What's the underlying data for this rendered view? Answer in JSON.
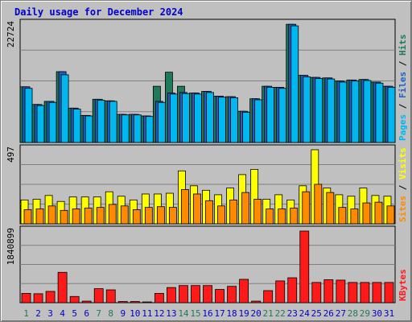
{
  "chart_data": {
    "type": "bar",
    "title": "Daily usage for December 2024",
    "categories": [
      "1",
      "2",
      "3",
      "4",
      "5",
      "6",
      "7",
      "8",
      "9",
      "10",
      "11",
      "12",
      "13",
      "14",
      "15",
      "16",
      "17",
      "18",
      "19",
      "20",
      "21",
      "22",
      "23",
      "24",
      "25",
      "26",
      "27",
      "28",
      "29",
      "30",
      "31"
    ],
    "weekend_days": [
      1,
      7,
      8,
      14,
      15,
      21,
      22,
      28,
      29
    ],
    "colors": {
      "hits": "#1f7a5c",
      "files": "#1f5fc6",
      "pages": "#00b7f0",
      "visits": "#ffff00",
      "sites": "#ff8a00",
      "kbytes": "#ff1a1a",
      "weekend": "#1f7a5c",
      "weekday": "#0000cc",
      "slash": "#000000"
    },
    "panels": [
      {
        "id": "top",
        "ymax_label": "22724",
        "ymax": 22724,
        "right_labels": [
          "Pages",
          "Files",
          "Hits"
        ],
        "series": [
          {
            "name": "Hits",
            "values": [
              10700,
              7300,
              7900,
              13600,
              6600,
              5200,
              8300,
              8000,
              5400,
              5400,
              5100,
              10800,
              13500,
              10800,
              9500,
              9800,
              8900,
              8800,
              6000,
              8400,
              10800,
              10600,
              22700,
              12900,
              12500,
              12400,
              11800,
              12000,
              12100,
              11600,
              10800
            ]
          },
          {
            "name": "Files",
            "values": [
              10700,
              7300,
              7900,
              13600,
              6600,
              5200,
              8300,
              8000,
              5400,
              5400,
              5100,
              7900,
              9500,
              9600,
              9500,
              9800,
              8900,
              8800,
              6000,
              8400,
              10800,
              10600,
              22700,
              12900,
              12500,
              12400,
              11800,
              12000,
              12100,
              11600,
              10800
            ]
          },
          {
            "name": "Pages",
            "values": [
              10400,
              7100,
              7700,
              13000,
              6400,
              5100,
              8100,
              7900,
              5300,
              5300,
              5000,
              7700,
              9300,
              9400,
              9300,
              9600,
              8700,
              8600,
              5800,
              8200,
              10600,
              10400,
              22400,
              12600,
              12300,
              12200,
              11600,
              11800,
              11900,
              11400,
              10600
            ]
          }
        ]
      },
      {
        "id": "mid",
        "ymax_label": "497",
        "ymax": 497,
        "right_labels": [
          "Sites",
          "Visits"
        ],
        "series": [
          {
            "name": "Visits",
            "values": [
              160,
              165,
              190,
              150,
              180,
              180,
              180,
              215,
              185,
              160,
              200,
              200,
              205,
              355,
              255,
              225,
              195,
              240,
              330,
              365,
              165,
              195,
              160,
              255,
              497,
              240,
              195,
              185,
              240,
              190,
              185
            ]
          },
          {
            "name": "Sites",
            "values": [
              95,
              100,
              120,
              90,
              100,
              105,
              110,
              130,
              120,
              95,
              110,
              115,
              110,
              230,
              200,
              155,
              120,
              160,
              210,
              165,
              100,
              100,
              105,
              215,
              265,
              210,
              110,
              100,
              140,
              145,
              120
            ]
          }
        ]
      },
      {
        "id": "bot",
        "ymax_label": "1840899",
        "ymax": 1840899,
        "right_labels": [
          "KBytes"
        ],
        "series": [
          {
            "name": "KBytes",
            "values": [
              240000,
              230000,
              290000,
              780000,
              160000,
              40000,
              360000,
              330000,
              30000,
              30000,
              20000,
              240000,
              390000,
              440000,
              440000,
              440000,
              340000,
              420000,
              600000,
              40000,
              310000,
              560000,
              640000,
              1840899,
              520000,
              590000,
              580000,
              520000,
              520000,
              520000,
              520000
            ]
          }
        ]
      }
    ]
  }
}
